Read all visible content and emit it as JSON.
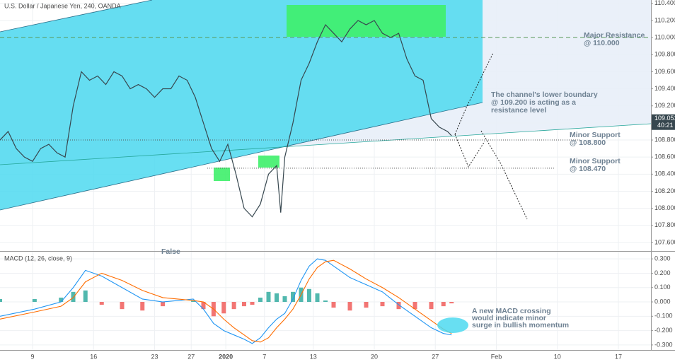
{
  "header": {
    "title": "U.S. Dollar / Japanese Yen, 240, OANDA",
    "last_price": 109.051,
    "countdown": "40:21"
  },
  "chart_data": [
    {
      "type": "line",
      "name": "price",
      "x": [
        0,
        4,
        8,
        12,
        16,
        20,
        24,
        28,
        32,
        36,
        40,
        44,
        48,
        52,
        56,
        60,
        64,
        68,
        72,
        76,
        80,
        84,
        88,
        92,
        96,
        100,
        104,
        108,
        112,
        116,
        120,
        124,
        128,
        132,
        136,
        138,
        140,
        144,
        148,
        152,
        156,
        160,
        164,
        168,
        172,
        176,
        180,
        184,
        188,
        192,
        196,
        200,
        204,
        208,
        212,
        216,
        220,
        222
      ],
      "values": [
        108.8,
        108.9,
        108.7,
        108.6,
        108.55,
        108.7,
        108.75,
        108.65,
        108.6,
        109.2,
        109.6,
        109.5,
        109.55,
        109.45,
        109.6,
        109.55,
        109.4,
        109.45,
        109.4,
        109.3,
        109.4,
        109.4,
        109.55,
        109.5,
        109.3,
        109.0,
        108.7,
        108.55,
        108.75,
        108.4,
        108.0,
        107.9,
        108.05,
        108.4,
        108.5,
        107.95,
        108.6,
        109.0,
        109.5,
        109.7,
        109.95,
        110.15,
        110.05,
        109.95,
        110.1,
        110.2,
        110.15,
        110.2,
        110.05,
        110.0,
        110.05,
        109.75,
        109.55,
        109.5,
        109.05,
        108.95,
        108.9,
        108.85
      ],
      "color": "#37474f",
      "xlim": [
        0,
        320
      ],
      "xticks": [
        {
          "value": 16,
          "label": "9"
        },
        {
          "value": 46,
          "label": "16"
        },
        {
          "value": 76,
          "label": "23"
        },
        {
          "value": 94,
          "label": "27"
        },
        {
          "value": 111,
          "label": "2020"
        },
        {
          "value": 130,
          "label": "7"
        },
        {
          "value": 154,
          "label": "13"
        },
        {
          "value": 184,
          "label": "20"
        },
        {
          "value": 214,
          "label": "27"
        },
        {
          "value": 244,
          "label": "Feb"
        },
        {
          "value": 274,
          "label": "10"
        },
        {
          "value": 304,
          "label": "17"
        }
      ],
      "ylim": [
        107.5,
        110.44
      ],
      "yticks": [
        {
          "value": 107.6,
          "label": "107.600"
        },
        {
          "value": 107.8,
          "label": "107.800"
        },
        {
          "value": 108.0,
          "label": "108.000"
        },
        {
          "value": 108.2,
          "label": "108.200"
        },
        {
          "value": 108.4,
          "label": "108.400"
        },
        {
          "value": 108.6,
          "label": "108.600"
        },
        {
          "value": 108.8,
          "label": "108.800"
        },
        {
          "value": 109.0,
          "label": "109.000"
        },
        {
          "value": 109.2,
          "label": "109.200"
        },
        {
          "value": 109.4,
          "label": "109.400"
        },
        {
          "value": 109.6,
          "label": "109.600"
        },
        {
          "value": 109.8,
          "label": "109.800"
        },
        {
          "value": 110.0,
          "label": "110.000"
        },
        {
          "value": 110.2,
          "label": "110.200"
        },
        {
          "value": 110.4,
          "label": "110.400"
        }
      ],
      "grid": true,
      "levels": [
        110.0,
        108.8,
        108.47
      ],
      "annotations": [
        {
          "lines": [
            "Major Resistance",
            "@ 110.000"
          ]
        },
        {
          "lines": [
            "The channel's lower boundary",
            "@ 109.200 is acting as a",
            "resistance level"
          ]
        },
        {
          "lines": [
            "Minor Support",
            "@ 108.800"
          ]
        },
        {
          "lines": [
            "Minor Support",
            "@ 108.470"
          ]
        },
        {
          "lines": [
            "False"
          ]
        }
      ]
    },
    {
      "type": "macd",
      "title": "MACD (12, 26, close, 9)",
      "x": [
        0,
        17,
        30,
        36,
        42,
        50,
        60,
        70,
        80,
        95,
        100,
        105,
        110,
        115,
        120,
        124,
        128,
        132,
        136,
        140,
        144,
        148,
        152,
        156,
        160,
        164,
        172,
        180,
        188,
        196,
        204,
        212,
        218,
        222
      ],
      "series": [
        {
          "name": "MACD",
          "color": "#2196f3",
          "values": [
            -0.1,
            -0.05,
            0.0,
            0.1,
            0.22,
            0.18,
            0.1,
            0.02,
            0.0,
            0.02,
            -0.05,
            -0.15,
            -0.2,
            -0.23,
            -0.26,
            -0.29,
            -0.25,
            -0.18,
            -0.12,
            -0.08,
            0.02,
            0.15,
            0.25,
            0.3,
            0.29,
            0.25,
            0.17,
            0.12,
            0.07,
            -0.02,
            -0.1,
            -0.18,
            -0.22,
            -0.23
          ]
        },
        {
          "name": "Signal",
          "color": "#ff6d00",
          "values": [
            -0.12,
            -0.07,
            -0.03,
            0.03,
            0.14,
            0.2,
            0.15,
            0.08,
            0.03,
            0.01,
            0.0,
            -0.05,
            -0.12,
            -0.18,
            -0.23,
            -0.27,
            -0.28,
            -0.25,
            -0.18,
            -0.12,
            -0.05,
            0.05,
            0.16,
            0.24,
            0.28,
            0.29,
            0.23,
            0.16,
            0.1,
            0.03,
            -0.05,
            -0.13,
            -0.19,
            -0.22
          ]
        }
      ],
      "histogram": {
        "colors": [
          "#26a69a",
          "#ef5350"
        ],
        "values": [
          0.02,
          0.02,
          0.03,
          0.07,
          0.08,
          -0.02,
          -0.05,
          -0.06,
          -0.03,
          0.01,
          -0.05,
          -0.1,
          -0.08,
          -0.05,
          -0.03,
          -0.02,
          0.03,
          0.07,
          0.06,
          0.04,
          0.07,
          0.1,
          0.09,
          0.06,
          0.01,
          -0.04,
          -0.06,
          -0.04,
          -0.03,
          -0.05,
          -0.05,
          -0.05,
          -0.03,
          -0.01
        ]
      },
      "ylim": [
        -0.335,
        0.35
      ],
      "yticks": [
        {
          "value": 0.3,
          "label": "0.300"
        },
        {
          "value": 0.2,
          "label": "0.200"
        },
        {
          "value": 0.1,
          "label": "0.100"
        },
        {
          "value": 0.0,
          "label": "0.000"
        },
        {
          "value": -0.1,
          "label": "-0.100"
        },
        {
          "value": -0.2,
          "label": "-0.200"
        },
        {
          "value": -0.3,
          "label": "-0.300"
        }
      ],
      "annotations": [
        {
          "lines": [
            "A new MACD crossing",
            "would indicate minor",
            "surge in bullish momentum"
          ]
        }
      ]
    }
  ]
}
